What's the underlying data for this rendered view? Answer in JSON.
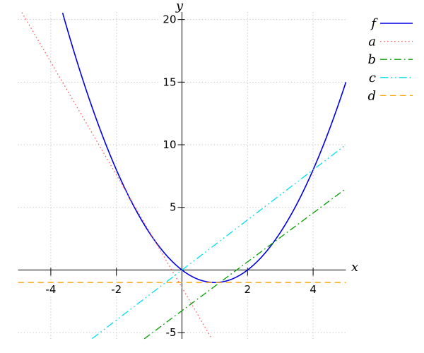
{
  "figure": {
    "background": "#ffffff",
    "axis_color": "#000000",
    "grid_color": "#bfbfbf",
    "text_color": "#000000"
  },
  "chart_data": {
    "type": "line",
    "title": "",
    "xlabel": "x",
    "ylabel": "y",
    "xlim": [
      -5,
      5
    ],
    "ylim": [
      -5.5,
      20.6
    ],
    "xticks": [
      -4,
      -2,
      2,
      4
    ],
    "yticks": [
      -5,
      5,
      10,
      15,
      20
    ],
    "grid": true,
    "legend_position": "outside-top-right",
    "series": [
      {
        "name": "f",
        "color": "#0000e6",
        "style": "solid",
        "equation": "x^2 - 2x",
        "poly": [
          0,
          -2,
          1
        ]
      },
      {
        "name": "a",
        "color": "#ff5c5c",
        "style": "dotted",
        "equation": "-4.5x - 1.4",
        "poly": [
          -1.4,
          -4.5
        ]
      },
      {
        "name": "b",
        "color": "#009e00",
        "style": "dashdot",
        "equation": "1.95x - 3.25",
        "poly": [
          -3.25,
          1.95
        ]
      },
      {
        "name": "c",
        "color": "#00dfe8",
        "style": "dashdotdot",
        "equation": "2x",
        "poly": [
          0,
          2
        ]
      },
      {
        "name": "d",
        "color": "#ffa300",
        "style": "dashed",
        "equation": "-1",
        "poly": [
          -1
        ]
      }
    ]
  }
}
